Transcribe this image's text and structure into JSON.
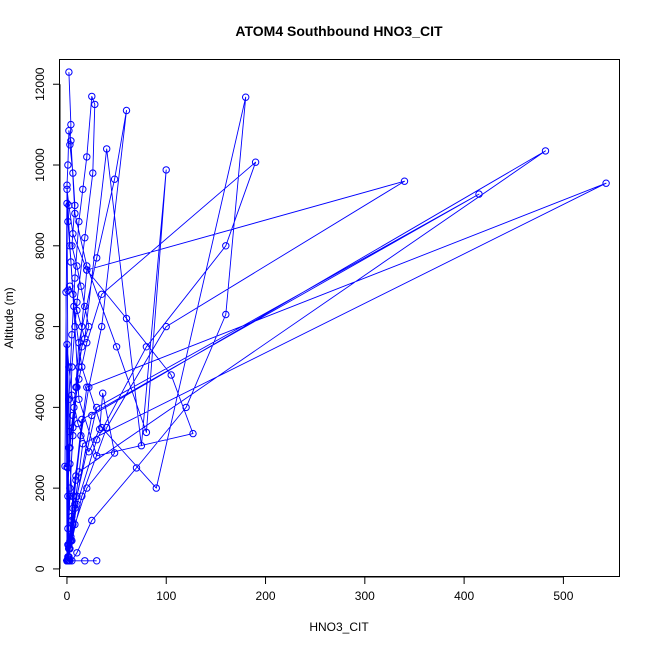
{
  "chart_data": {
    "type": "line",
    "title": "ATOM4 Southbound HNO3_CIT",
    "xlabel": "HNO3_CIT",
    "ylabel": "Altitude (m)",
    "xlim": [
      -7,
      557
    ],
    "ylim": [
      -200,
      12600
    ],
    "xticks": [
      0,
      100,
      200,
      300,
      400,
      500
    ],
    "yticks": [
      0,
      2000,
      4000,
      6000,
      8000,
      10000,
      12000
    ],
    "xtick_labels": [
      "0",
      "100",
      "200",
      "300",
      "400",
      "500"
    ],
    "ytick_labels": [
      "0",
      "2000",
      "4000",
      "6000",
      "8000",
      "10000",
      "12000"
    ],
    "grid": false,
    "legend": "none",
    "series": [
      {
        "color": "#0000ff",
        "marker": "open-circle",
        "x": [
          2,
          4,
          3,
          6,
          8,
          5,
          10,
          14,
          18,
          22,
          15,
          12,
          9,
          7,
          3,
          1,
          0,
          2,
          4,
          6,
          3,
          2,
          5,
          8,
          12,
          16,
          20,
          25,
          28,
          26,
          18,
          10,
          5,
          3,
          1,
          0,
          2,
          5,
          9,
          14,
          22,
          35,
          60,
          48,
          30,
          12,
          6,
          3,
          1,
          0,
          -1,
          1,
          3,
          6,
          10,
          18,
          40,
          75,
          100,
          80,
          50,
          20,
          8,
          4,
          2,
          1,
          0,
          3,
          7,
          15,
          35,
          90,
          180,
          160,
          120,
          70,
          25,
          10,
          5,
          2,
          0,
          1,
          4,
          8,
          12,
          30,
          127,
          105,
          60,
          20,
          6,
          2,
          0,
          -2,
          0,
          2,
          6,
          12,
          20,
          35,
          190,
          160,
          80,
          30,
          10,
          3,
          1,
          0,
          2,
          5,
          11,
          22,
          33,
          36,
          48,
          20,
          8,
          2,
          0,
          1,
          3,
          6,
          10,
          15,
          20,
          340,
          100,
          40,
          15,
          5,
          2,
          1,
          0,
          2,
          5,
          9,
          15,
          415,
          30,
          10,
          4,
          1,
          0,
          2,
          6,
          12,
          482,
          25,
          8,
          2,
          0,
          1,
          3,
          8,
          16,
          543,
          20,
          6,
          2,
          1,
          0,
          3,
          18,
          30
        ],
        "y": [
          12300,
          11000,
          10500,
          9800,
          9000,
          8000,
          7500,
          7000,
          6500,
          6000,
          5500,
          5000,
          4500,
          4000,
          3000,
          2500,
          200,
          300,
          800,
          1500,
          2600,
          4200,
          5800,
          7200,
          8600,
          9400,
          10200,
          11700,
          11500,
          9800,
          8200,
          6600,
          5000,
          3400,
          1800,
          200,
          500,
          1200,
          2200,
          3300,
          4500,
          6000,
          11350,
          9650,
          7700,
          5600,
          3500,
          1800,
          600,
          200,
          6850,
          6900,
          7000,
          6800,
          6400,
          5700,
          10400,
          3050,
          9880,
          3380,
          5500,
          7500,
          8800,
          10600,
          10850,
          10000,
          9500,
          8000,
          6500,
          5000,
          3500,
          2000,
          11680,
          6300,
          4000,
          2500,
          1200,
          400,
          200,
          200,
          9050,
          8600,
          7600,
          6000,
          4200,
          2800,
          3350,
          4800,
          6200,
          7400,
          8300,
          9000,
          9400,
          2540,
          2520,
          3000,
          3800,
          4700,
          5600,
          6800,
          10070,
          8000,
          5500,
          3200,
          1600,
          500,
          200,
          5560,
          5000,
          4300,
          3600,
          2900,
          3460,
          4350,
          2870,
          2000,
          1100,
          500,
          200,
          1000,
          2000,
          3300,
          4500,
          6000,
          7400,
          9600,
          6000,
          3500,
          1800,
          700,
          300,
          200,
          200,
          600,
          1300,
          2300,
          3700,
          9280,
          4000,
          1800,
          700,
          250,
          200,
          500,
          1100,
          2400,
          10350,
          3800,
          1500,
          500,
          200,
          300,
          700,
          1600,
          3100,
          9550,
          4500,
          1800,
          600,
          250,
          200,
          200,
          200,
          200
        ]
      }
    ]
  }
}
